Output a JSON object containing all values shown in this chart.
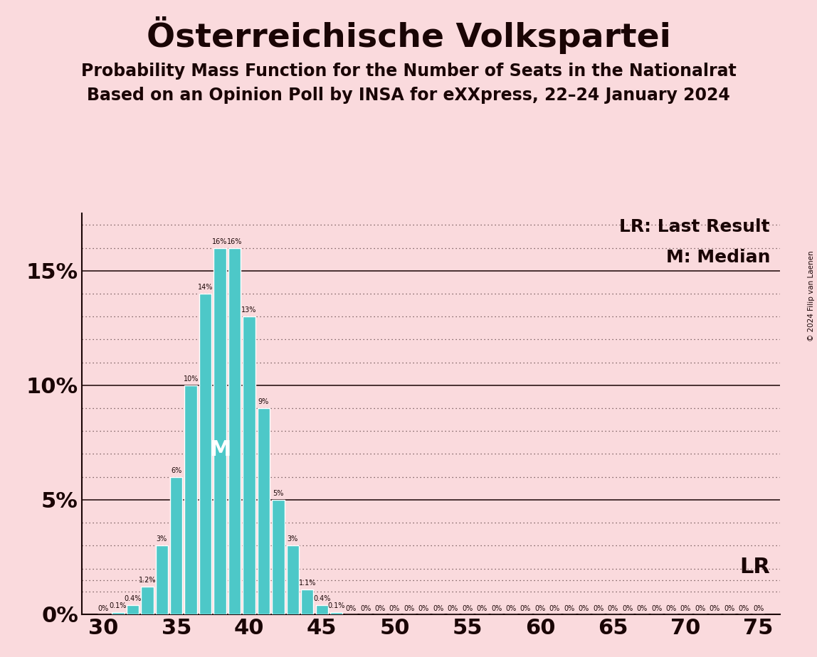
{
  "title": "Österreichische Volkspartei",
  "subtitle1": "Probability Mass Function for the Number of Seats in the Nationalrat",
  "subtitle2": "Based on an Opinion Poll by INSA for eXXpress, 22–24 January 2024",
  "background_color": "#FADADD",
  "bar_color": "#4DC8C8",
  "bar_edge_color": "#FFFFFF",
  "seats": [
    30,
    31,
    32,
    33,
    34,
    35,
    36,
    37,
    38,
    39,
    40,
    41,
    42,
    43,
    44,
    45,
    46,
    47,
    48,
    49,
    50,
    51,
    52,
    53,
    54,
    55,
    56,
    57,
    58,
    59,
    60,
    61,
    62,
    63,
    64,
    65,
    66,
    67,
    68,
    69,
    70,
    71,
    72,
    73,
    74,
    75
  ],
  "probs": [
    0.0,
    0.1,
    0.4,
    1.2,
    3.0,
    6.0,
    10.0,
    14.0,
    16.0,
    16.0,
    13.0,
    9.0,
    5.0,
    3.0,
    1.1,
    0.4,
    0.1,
    0.0,
    0.0,
    0.0,
    0.0,
    0.0,
    0.0,
    0.0,
    0.0,
    0.0,
    0.0,
    0.0,
    0.0,
    0.0,
    0.0,
    0.0,
    0.0,
    0.0,
    0.0,
    0.0,
    0.0,
    0.0,
    0.0,
    0.0,
    0.0,
    0.0,
    0.0,
    0.0,
    0.0,
    0.0
  ],
  "median_seat": 38,
  "lr_y": 1.5,
  "ylim": [
    0,
    17.5
  ],
  "ytick_major": [
    0,
    5,
    10,
    15
  ],
  "yticklabels": [
    "0%",
    "5%",
    "10%",
    "15%"
  ],
  "xlim": [
    28.5,
    76.5
  ],
  "xticks": [
    30,
    35,
    40,
    45,
    50,
    55,
    60,
    65,
    70,
    75
  ],
  "title_fontsize": 34,
  "subtitle_fontsize": 17,
  "tick_fontsize": 22,
  "bar_label_fontsize": 7,
  "legend_fontsize": 18,
  "copyright_text": "© 2024 Filip van Laenen",
  "text_color": "#1a0505",
  "lr_label": "LR: Last Result",
  "m_label": "M: Median",
  "lr_text": "LR",
  "m_text": "M"
}
